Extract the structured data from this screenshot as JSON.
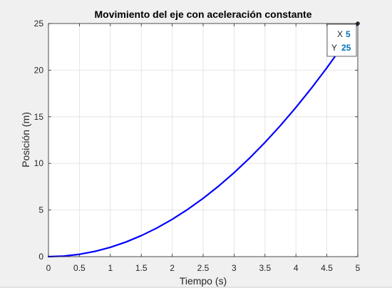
{
  "chart_data": {
    "type": "line",
    "title": "Movimiento del eje con aceleración constante",
    "xlabel": "Tiempo (s)",
    "ylabel": "Posición (m)",
    "xlim": [
      0,
      5
    ],
    "ylim": [
      0,
      25
    ],
    "xticks": [
      "0",
      "0.5",
      "1",
      "1.5",
      "2",
      "2.5",
      "3",
      "3.5",
      "4",
      "4.5",
      "5"
    ],
    "yticks": [
      "0",
      "5",
      "10",
      "15",
      "20",
      "25"
    ],
    "grid": true,
    "series": [
      {
        "color": "#0000ff",
        "x": [
          0,
          0.25,
          0.5,
          0.75,
          1,
          1.25,
          1.5,
          1.75,
          2,
          2.25,
          2.5,
          2.75,
          3,
          3.25,
          3.5,
          3.75,
          4,
          4.25,
          4.5,
          4.75,
          5
        ],
        "y": [
          0,
          0.0625,
          0.25,
          0.5625,
          1,
          1.5625,
          2.25,
          3.0625,
          4,
          5.0625,
          6.25,
          7.5625,
          9,
          10.5625,
          12.25,
          14.0625,
          16,
          18.0625,
          20.25,
          22.5625,
          25
        ]
      }
    ],
    "datatip": {
      "x_label": "X",
      "x_value": "5",
      "y_label": "Y",
      "y_value": "25",
      "value_color": "#0072bd",
      "point_x": 5,
      "point_y": 25
    }
  }
}
